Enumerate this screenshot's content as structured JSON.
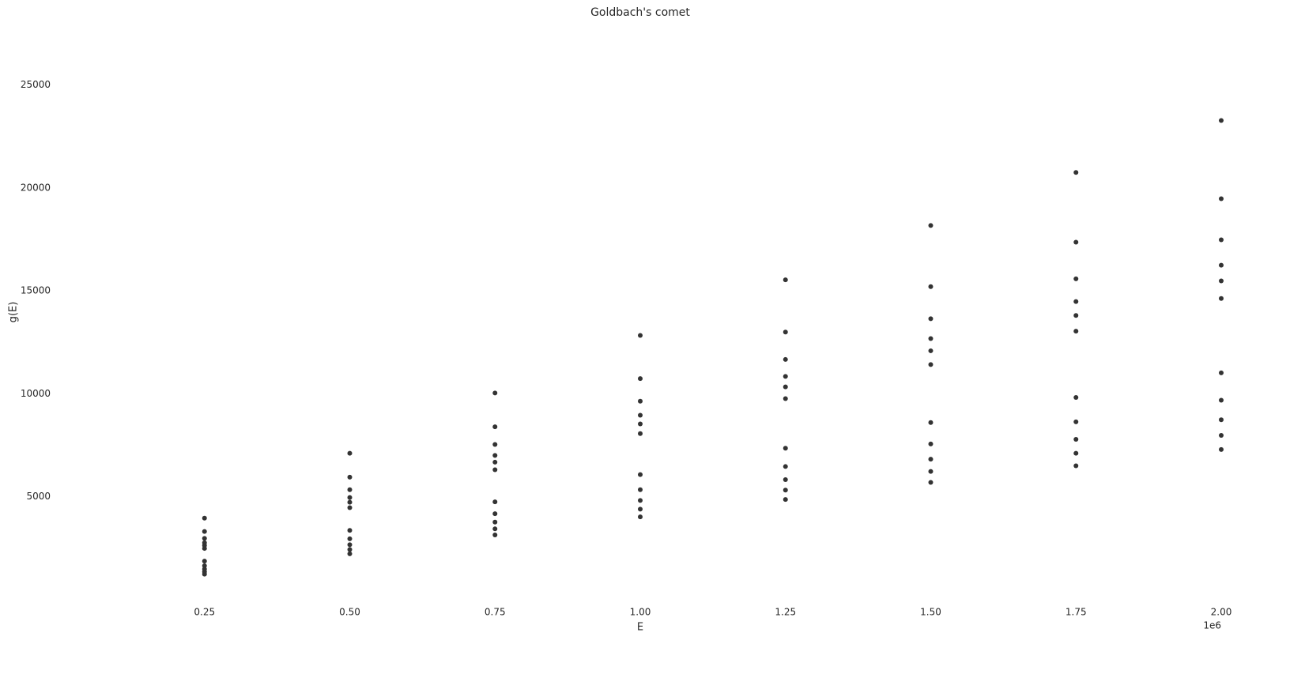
{
  "chart_data": {
    "type": "scatter",
    "title": "Goldbach's comet",
    "xlabel": "E",
    "ylabel": "g(E)",
    "x_offset_label": "1e6",
    "color": "#333333",
    "grid": false,
    "xlim": [
      0,
      2000000
    ],
    "ylim": [
      0,
      27900
    ],
    "xticks": [
      {
        "value": 250000,
        "label": "0.25"
      },
      {
        "value": 500000,
        "label": "0.50"
      },
      {
        "value": 750000,
        "label": "0.75"
      },
      {
        "value": 1000000,
        "label": "1.00"
      },
      {
        "value": 1250000,
        "label": "1.25"
      },
      {
        "value": 1500000,
        "label": "1.50"
      },
      {
        "value": 1750000,
        "label": "1.75"
      },
      {
        "value": 2000000,
        "label": "2.00"
      }
    ],
    "yticks": [
      5000,
      10000,
      15000,
      20000,
      25000
    ],
    "x": [
      250000,
      500000,
      750000,
      1000000,
      1250000,
      1500000,
      1750000,
      2000000,
      250000,
      500000,
      750000,
      1000000,
      1250000,
      1500000,
      1750000,
      2000000,
      250000,
      500000,
      750000,
      1000000,
      1250000,
      1500000,
      1750000,
      2000000,
      250000,
      500000,
      750000,
      1000000,
      1250000,
      1500000,
      1750000,
      2000000,
      250000,
      500000,
      750000,
      1000000,
      1250000,
      1500000,
      1750000,
      2000000,
      250000,
      500000,
      750000,
      1000000,
      1250000,
      1500000,
      1750000,
      2000000,
      250000,
      500000,
      750000,
      1000000,
      1250000,
      1500000,
      1750000,
      2000000,
      250000,
      500000,
      750000,
      1000000,
      1250000,
      1500000,
      1750000,
      2000000,
      250000,
      500000,
      750000,
      1000000,
      1250000,
      1500000,
      1750000,
      2000000,
      250000,
      500000,
      750000,
      1000000,
      1250000,
      1500000,
      1750000,
      2000000,
      250000,
      500000,
      750000,
      1000000,
      1250000,
      1500000,
      1750000,
      2000000
    ],
    "y": [
      1243,
      2230,
      3147,
      4024,
      4871,
      5697,
      6505,
      7297,
      1359,
      2439,
      3442,
      4401,
      5327,
      6231,
      7115,
      7981,
      1489,
      2672,
      3770,
      4820,
      5835,
      6825,
      7792,
      8741,
      1650,
      2962,
      4180,
      5344,
      6469,
      7566,
      8639,
      9691,
      1877,
      3369,
      4754,
      6077,
      7357,
      8605,
      9825,
      11021,
      2492,
      4472,
      6311,
      8068,
      9767,
      11424,
      13044,
      14632,
      2637,
      4734,
      6680,
      8540,
      10337,
      12091,
      13806,
      15487,
      2767,
      4966,
      7008,
      8959,
      10845,
      12685,
      14484,
      16247,
      2977,
      5343,
      7540,
      9640,
      11669,
      13649,
      15585,
      17482,
      3317,
      5953,
      8401,
      10740,
      13001,
      15207,
      17364,
      19477,
      3964,
      7115,
      10040,
      12836,
      15538,
      18174,
      20752,
      23277
    ]
  }
}
